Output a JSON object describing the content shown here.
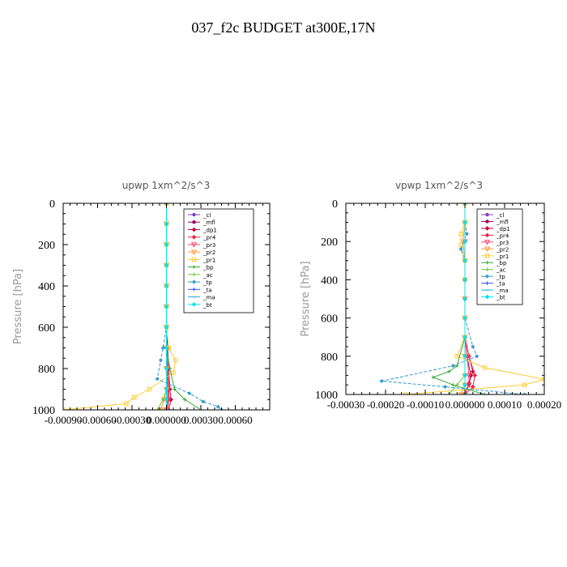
{
  "figure_title": "037_f2c  BUDGET at300E,17N",
  "chart_data": [
    {
      "type": "line",
      "title": "upwp   1xm^2/s^3",
      "ylabel": "Pressure [hPa]",
      "xlabel": "",
      "xlim": [
        -0.0009,
        0.0009
      ],
      "ylim": [
        1000,
        0
      ],
      "xticks": [
        -0.0009,
        -0.0006,
        -0.0003,
        0.0,
        0.0003,
        0.0006
      ],
      "xtick_labels": [
        "-0.00090",
        "-0.00060",
        "-0.00030",
        "0.000000",
        "0.00030",
        "0.00060"
      ],
      "yticks": [
        0,
        200,
        400,
        600,
        800,
        1000
      ],
      "ytick_labels": [
        "0",
        "200",
        "400",
        "600",
        "800",
        "1000"
      ],
      "grid": false,
      "legend_position": "top-right",
      "series": [
        {
          "name": "_cl",
          "color": "#7f3fbf",
          "marker": "circle",
          "x": [
            0.0,
            0.0,
            0.0,
            0.0,
            0.0,
            0.0,
            0.0,
            0.0,
            0.0,
            0.0,
            0.0,
            0.0
          ],
          "y": [
            0,
            100,
            200,
            300,
            400,
            500,
            600,
            700,
            800,
            900,
            950,
            1000
          ]
        },
        {
          "name": "_mfl",
          "color": "#990066",
          "marker": "circle",
          "x": [
            0.0,
            0.0,
            0.0,
            0.0,
            0.0,
            0.0,
            0.0,
            0.0,
            5e-06,
            1.5e-05,
            2e-05,
            1e-05
          ],
          "y": [
            0,
            100,
            200,
            300,
            400,
            500,
            600,
            700,
            800,
            900,
            950,
            1000
          ]
        },
        {
          "name": "_dp1",
          "color": "#cc0033",
          "marker": "diamond",
          "x": [
            0.0,
            0.0,
            0.0,
            0.0,
            0.0,
            0.0,
            0.0,
            1e-05,
            2e-05,
            3e-05,
            4e-05,
            2e-05
          ],
          "y": [
            0,
            100,
            200,
            300,
            400,
            500,
            600,
            700,
            800,
            900,
            950,
            1000
          ]
        },
        {
          "name": "_pr4",
          "color": "#ee2244",
          "marker": "diamond",
          "x": [
            0.0,
            0.0,
            0.0,
            0.0,
            0.0,
            0.0,
            0.0,
            0.0,
            1e-05,
            2e-05,
            2e-05,
            1e-05
          ],
          "y": [
            0,
            100,
            200,
            300,
            400,
            500,
            600,
            700,
            800,
            900,
            950,
            1000
          ]
        },
        {
          "name": "_pr3",
          "color": "#ff4466",
          "marker": "triangle",
          "x": [
            0.0,
            0.0,
            0.0,
            0.0,
            0.0,
            0.0,
            0.0,
            0.0,
            5e-06,
            1e-05,
            1e-05,
            0.0
          ],
          "y": [
            0,
            100,
            200,
            300,
            400,
            500,
            600,
            700,
            800,
            900,
            950,
            1000
          ]
        },
        {
          "name": "_pr2",
          "color": "#ff9933",
          "marker": "triangle",
          "x": [
            0.0,
            0.0,
            0.0,
            0.0,
            0.0,
            0.0,
            0.0,
            0.0,
            0.0,
            0.0,
            -2e-05,
            -5e-05
          ],
          "y": [
            0,
            100,
            200,
            300,
            400,
            500,
            600,
            700,
            800,
            900,
            950,
            1000
          ]
        },
        {
          "name": "_pr1",
          "color": "#ffcc33",
          "marker": "square",
          "x": [
            0.0,
            0.0,
            0.0,
            0.0,
            0.0,
            0.0,
            0.0,
            2e-05,
            8e-05,
            6e-05,
            -0.00015,
            -0.00028,
            -0.00035,
            -0.0009
          ],
          "y": [
            0,
            100,
            200,
            300,
            400,
            500,
            600,
            700,
            760,
            820,
            900,
            940,
            970,
            1000
          ]
        },
        {
          "name": "_bp",
          "color": "#33aa33",
          "marker": "cross",
          "x": [
            0.0,
            0.0,
            0.0,
            0.0,
            0.0,
            0.0,
            0.0,
            0.0,
            3e-05,
            7e-05,
            0.00016,
            0.0003
          ],
          "y": [
            0,
            100,
            200,
            300,
            400,
            500,
            600,
            700,
            800,
            900,
            950,
            1000
          ]
        },
        {
          "name": "_ac",
          "color": "#66cc33",
          "marker": "cross",
          "x": [
            0.0,
            0.0,
            0.0,
            0.0,
            0.0,
            0.0,
            0.0,
            0.0,
            0.0,
            0.0,
            -3e-05,
            -8e-05
          ],
          "y": [
            0,
            100,
            200,
            300,
            400,
            500,
            600,
            700,
            800,
            900,
            950,
            1000
          ]
        },
        {
          "name": "_tp",
          "color": "#3399cc",
          "marker": "asterisk",
          "x": [
            0.0,
            0.0,
            0.0,
            0.0,
            0.0,
            0.0,
            0.0,
            -3e-05,
            -5e-05,
            -8e-05,
            0.0002,
            0.00032,
            0.00045,
            0.00048
          ],
          "y": [
            0,
            100,
            200,
            300,
            400,
            500,
            600,
            700,
            760,
            850,
            920,
            960,
            985,
            1000
          ]
        },
        {
          "name": "_ta",
          "color": "#3355ee",
          "marker": "cross",
          "x": [
            0.0,
            0.0,
            0.0,
            0.0,
            0.0,
            0.0,
            0.0,
            0.0,
            0.0,
            0.0,
            0.0,
            0.0
          ],
          "y": [
            0,
            100,
            200,
            300,
            400,
            500,
            600,
            700,
            800,
            900,
            950,
            1000
          ]
        },
        {
          "name": "_ma",
          "color": "#22aadd",
          "marker": "dash",
          "x": [
            0.0,
            0.0,
            0.0,
            0.0,
            0.0,
            0.0,
            0.0,
            0.0,
            0.0,
            0.0,
            0.0,
            0.0
          ],
          "y": [
            0,
            100,
            200,
            300,
            400,
            500,
            600,
            700,
            800,
            900,
            950,
            1000
          ]
        },
        {
          "name": "_bt",
          "color": "#00e5ee",
          "marker": "diamond",
          "x": [
            0.0,
            0.0,
            0.0,
            0.0,
            0.0,
            0.0,
            0.0,
            0.0,
            0.0,
            0.0,
            0.0,
            0.0
          ],
          "y": [
            0,
            100,
            200,
            300,
            400,
            500,
            600,
            700,
            800,
            900,
            950,
            1000
          ]
        }
      ]
    },
    {
      "type": "line",
      "title": "vpwp   1xm^2/s^3",
      "ylabel": "Pressure [hPa]",
      "xlabel": "",
      "xlim": [
        -0.0003,
        0.0002
      ],
      "ylim": [
        1000,
        0
      ],
      "xticks": [
        -0.0003,
        -0.0002,
        -0.0001,
        0.0,
        0.0001,
        0.0002
      ],
      "xtick_labels": [
        "-0.00030",
        "-0.00020",
        "-0.00010",
        "0.000000",
        "0.00010",
        "0.00020"
      ],
      "yticks": [
        0,
        200,
        400,
        600,
        800,
        1000
      ],
      "ytick_labels": [
        "0",
        "200",
        "400",
        "600",
        "800",
        "1000"
      ],
      "grid": false,
      "legend_position": "top-right",
      "series": [
        {
          "name": "_cl",
          "color": "#7f3fbf",
          "marker": "circle",
          "x": [
            0.0,
            0.0,
            0.0,
            0.0,
            0.0,
            0.0,
            0.0,
            0.0,
            0.0,
            0.0,
            0.0,
            0.0
          ],
          "y": [
            0,
            100,
            200,
            300,
            400,
            500,
            600,
            700,
            800,
            900,
            950,
            1000
          ]
        },
        {
          "name": "_mfl",
          "color": "#990066",
          "marker": "circle",
          "x": [
            0.0,
            0.0,
            0.0,
            0.0,
            0.0,
            0.0,
            0.0,
            0.0,
            5e-06,
            1.5e-05,
            1e-05,
            0.0
          ],
          "y": [
            0,
            100,
            200,
            300,
            400,
            500,
            600,
            700,
            800,
            900,
            950,
            1000
          ]
        },
        {
          "name": "_dp1",
          "color": "#cc0033",
          "marker": "diamond",
          "x": [
            0.0,
            0.0,
            0.0,
            0.0,
            0.0,
            0.0,
            0.0,
            0.0,
            1e-05,
            2e-05,
            1e-05,
            0.0
          ],
          "y": [
            0,
            100,
            200,
            300,
            400,
            500,
            600,
            700,
            800,
            880,
            940,
            1000
          ]
        },
        {
          "name": "_pr4",
          "color": "#ee2244",
          "marker": "diamond",
          "x": [
            0.0,
            0.0,
            0.0,
            0.0,
            0.0,
            0.0,
            0.0,
            0.0,
            1e-05,
            2.5e-05,
            2e-05,
            0.0
          ],
          "y": [
            0,
            100,
            200,
            300,
            400,
            500,
            600,
            700,
            800,
            900,
            960,
            1000
          ]
        },
        {
          "name": "_pr3",
          "color": "#ff4466",
          "marker": "triangle",
          "x": [
            0.0,
            0.0,
            0.0,
            0.0,
            0.0,
            0.0,
            0.0,
            0.0,
            5e-06,
            1e-05,
            1e-05,
            0.0
          ],
          "y": [
            0,
            100,
            200,
            300,
            400,
            500,
            600,
            700,
            800,
            900,
            950,
            1000
          ]
        },
        {
          "name": "_pr2",
          "color": "#ff9933",
          "marker": "triangle",
          "x": [
            0.0,
            0.0,
            -5e-06,
            0.0,
            0.0,
            0.0,
            0.0,
            0.0,
            0.0,
            0.0,
            0.0,
            -1e-05
          ],
          "y": [
            0,
            100,
            200,
            300,
            400,
            500,
            600,
            700,
            800,
            900,
            950,
            1000
          ]
        },
        {
          "name": "_pr1",
          "color": "#ffcc33",
          "marker": "square",
          "x": [
            0.0,
            0.0,
            -1e-05,
            -1e-05,
            0.0,
            0.0,
            0.0,
            0.0,
            -2e-05,
            5e-05,
            0.0002,
            0.00015,
            -0.00015
          ],
          "y": [
            0,
            100,
            160,
            220,
            300,
            400,
            600,
            700,
            800,
            860,
            920,
            950,
            1000
          ]
        },
        {
          "name": "_bp",
          "color": "#33aa33",
          "marker": "cross",
          "x": [
            0.0,
            0.0,
            0.0,
            0.0,
            0.0,
            0.0,
            0.0,
            0.0,
            -2e-05,
            -4e-05,
            -8e-05,
            -3e-05,
            5e-05
          ],
          "y": [
            0,
            100,
            200,
            300,
            400,
            500,
            600,
            700,
            850,
            880,
            910,
            950,
            1000
          ]
        },
        {
          "name": "_ac",
          "color": "#66cc33",
          "marker": "cross",
          "x": [
            0.0,
            0.0,
            0.0,
            0.0,
            0.0,
            0.0,
            0.0,
            0.0,
            0.0,
            0.0,
            -2e-05,
            -4e-05
          ],
          "y": [
            0,
            100,
            200,
            300,
            400,
            500,
            600,
            700,
            800,
            900,
            950,
            1000
          ]
        },
        {
          "name": "_tp",
          "color": "#3399cc",
          "marker": "asterisk",
          "x": [
            0.0,
            0.0,
            5e-06,
            -1e-05,
            0.0,
            0.0,
            0.0,
            2e-05,
            3e-05,
            -3e-05,
            -0.00021,
            -5e-05,
            0.00015
          ],
          "y": [
            0,
            100,
            160,
            240,
            300,
            400,
            600,
            750,
            800,
            850,
            930,
            960,
            1000
          ]
        },
        {
          "name": "_ta",
          "color": "#3355ee",
          "marker": "cross",
          "x": [
            0.0,
            0.0,
            0.0,
            0.0,
            0.0,
            0.0,
            0.0,
            0.0,
            0.0,
            0.0,
            0.0,
            0.0
          ],
          "y": [
            0,
            100,
            200,
            300,
            400,
            500,
            600,
            700,
            800,
            900,
            950,
            1000
          ]
        },
        {
          "name": "_ma",
          "color": "#22aadd",
          "marker": "dash",
          "x": [
            0.0,
            0.0,
            0.0,
            0.0,
            0.0,
            0.0,
            0.0,
            0.0,
            0.0,
            0.0,
            0.0,
            0.0
          ],
          "y": [
            0,
            100,
            200,
            300,
            400,
            500,
            600,
            700,
            800,
            900,
            950,
            1000
          ]
        },
        {
          "name": "_bt",
          "color": "#00e5ee",
          "marker": "diamond",
          "x": [
            0.0,
            0.0,
            0.0,
            0.0,
            0.0,
            0.0,
            0.0,
            0.0,
            0.0,
            0.0,
            0.0,
            0.0
          ],
          "y": [
            0,
            100,
            200,
            300,
            400,
            500,
            600,
            700,
            800,
            900,
            950,
            1000
          ]
        }
      ]
    }
  ]
}
